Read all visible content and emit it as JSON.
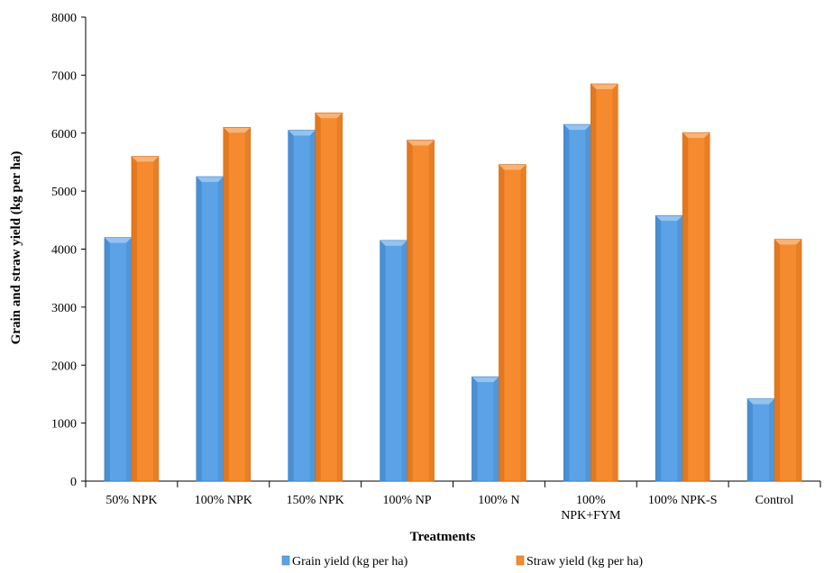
{
  "chart_data": {
    "type": "bar",
    "title": "",
    "xlabel": "Treatments",
    "ylabel": "Grain and straw yield (kg per ha)",
    "ylim": [
      0,
      8000
    ],
    "yticks": [
      0,
      1000,
      2000,
      3000,
      4000,
      5000,
      6000,
      7000,
      8000
    ],
    "grid": false,
    "legend_position": "bottom",
    "categories": [
      "50% NPK",
      "100% NPK",
      "150% NPK",
      "100% NP",
      "100% N",
      "100% NPK+FYM",
      "100% NPK-S",
      "Control"
    ],
    "category_lines": [
      [
        "50% NPK"
      ],
      [
        "100% NPK"
      ],
      [
        "150% NPK"
      ],
      [
        "100% NP"
      ],
      [
        "100% N"
      ],
      [
        "100%",
        "NPK+FYM"
      ],
      [
        "100% NPK-S"
      ],
      [
        "Control"
      ]
    ],
    "series": [
      {
        "name": "Grain yield (kg per ha)",
        "color": "#5ba3e6",
        "dark": "#3b7fc4",
        "values": [
          4200,
          5250,
          6050,
          4150,
          1800,
          6150,
          4580,
          1420
        ]
      },
      {
        "name": "Straw yield (kg per ha)",
        "color": "#f58a2e",
        "dark": "#d46a12",
        "values": [
          5600,
          6100,
          6350,
          5880,
          5460,
          6850,
          6010,
          4170
        ]
      }
    ]
  }
}
